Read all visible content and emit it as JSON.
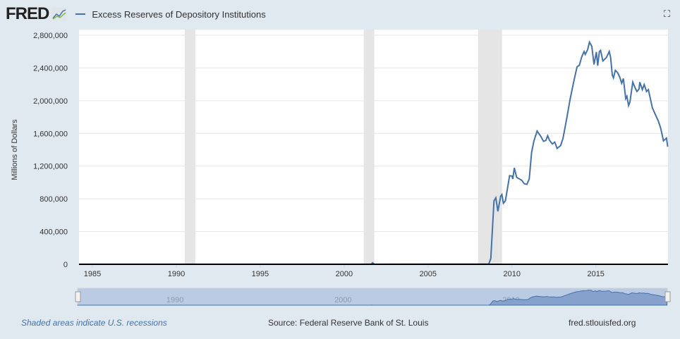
{
  "header": {
    "logo": "FRED",
    "legend": "Excess Reserves of Depository Institutions",
    "fullscreen_icon": "expand-icon"
  },
  "footer": {
    "recessions": "Shaded areas indicate U.S. recessions",
    "source": "Source: Federal Reserve Bank of St. Louis",
    "site": "fred.stlouisfed.org"
  },
  "chart_data": {
    "type": "line",
    "title": "",
    "ylabel": "Millions of Dollars",
    "xlabel": "",
    "xlim": [
      1984.2,
      2019.3
    ],
    "ylim": [
      0,
      2800000
    ],
    "grid": true,
    "legend": "top-left",
    "series_color": "#4572a7",
    "recession_color": "#e5e5e5",
    "yticks": [
      0,
      400000,
      800000,
      1200000,
      1600000,
      2000000,
      2400000,
      2800000
    ],
    "ytick_labels": [
      "0",
      "400,000",
      "800,000",
      "1,200,000",
      "1,600,000",
      "2,000,000",
      "2,400,000",
      "2,800,000"
    ],
    "xticks": [
      1985,
      1990,
      1995,
      2000,
      2005,
      2010,
      2015
    ],
    "navigator_ticks": [
      1990,
      2000,
      2010
    ],
    "recessions": [
      [
        1990.5,
        1991.13
      ],
      [
        2001.17,
        2001.8
      ],
      [
        2007.98,
        2009.41
      ]
    ],
    "series": [
      {
        "name": "Excess Reserves of Depository Institutions",
        "x": [
          1984.2,
          1990,
          1995,
          2001.6,
          2001.7,
          2001.8,
          2008.07,
          2008.62,
          2008.74,
          2008.93,
          2009.04,
          2009.16,
          2009.33,
          2009.4,
          2009.49,
          2009.61,
          2009.86,
          2010.0,
          2010.05,
          2010.14,
          2010.28,
          2010.59,
          2010.73,
          2010.89,
          2011.03,
          2011.17,
          2011.31,
          2011.5,
          2011.73,
          2011.88,
          2012.02,
          2012.13,
          2012.24,
          2012.41,
          2012.55,
          2012.69,
          2012.9,
          2013.04,
          2013.25,
          2013.46,
          2013.67,
          2013.88,
          2014.02,
          2014.16,
          2014.3,
          2014.37,
          2014.51,
          2014.62,
          2014.76,
          2014.89,
          2015.03,
          2015.11,
          2015.21,
          2015.28,
          2015.42,
          2015.63,
          2015.8,
          2015.88,
          2015.98,
          2016.05,
          2016.16,
          2016.3,
          2016.43,
          2016.54,
          2016.64,
          2016.78,
          2016.85,
          2016.95,
          2017.03,
          2017.2,
          2017.31,
          2017.45,
          2017.57,
          2017.62,
          2017.77,
          2017.88,
          2018.02,
          2018.13,
          2018.37,
          2018.72,
          2018.86,
          2019.03,
          2019.21,
          2019.28
        ],
        "y": [
          1000,
          1500,
          1200,
          1500,
          19000,
          1500,
          2000,
          2000,
          72000,
          776000,
          813000,
          647000,
          834000,
          853000,
          747000,
          776000,
          1083000,
          1078000,
          1043000,
          1178000,
          1063000,
          1026000,
          985000,
          977000,
          1043000,
          1365000,
          1509000,
          1629000,
          1560000,
          1503000,
          1514000,
          1571000,
          1514000,
          1471000,
          1494000,
          1416000,
          1451000,
          1537000,
          1767000,
          2011000,
          2221000,
          2414000,
          2434000,
          2537000,
          2601000,
          2566000,
          2623000,
          2716000,
          2664000,
          2442000,
          2595000,
          2428000,
          2601000,
          2615000,
          2485000,
          2528000,
          2601000,
          2528000,
          2313000,
          2279000,
          2371000,
          2342000,
          2285000,
          2213000,
          2270000,
          2026000,
          2054000,
          1940000,
          1983000,
          2227000,
          2170000,
          2112000,
          2141000,
          2227000,
          2135000,
          2198000,
          2112000,
          2135000,
          1911000,
          1753000,
          1667000,
          1509000,
          1543000,
          1437000
        ]
      }
    ]
  }
}
